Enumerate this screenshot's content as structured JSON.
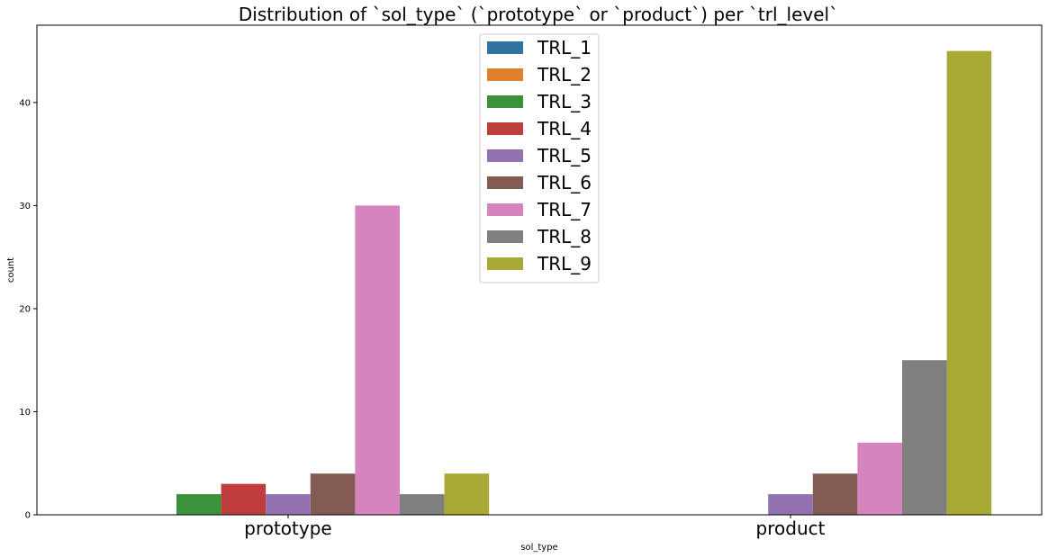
{
  "chart_data": {
    "type": "bar",
    "title": "Distribution of `sol_type` (`prototype` or `product`) per `trl_level`",
    "xlabel": "sol_type",
    "ylabel": "count",
    "categories": [
      "prototype",
      "product"
    ],
    "ylim": [
      0,
      47.5
    ],
    "yticks": [
      0,
      10,
      20,
      30,
      40
    ],
    "grid": false,
    "legend_position": "top-center",
    "series": [
      {
        "name": "TRL_1",
        "color": "#3274a1",
        "values": [
          0,
          0
        ]
      },
      {
        "name": "TRL_2",
        "color": "#e1812c",
        "values": [
          0,
          0
        ]
      },
      {
        "name": "TRL_3",
        "color": "#3a923a",
        "values": [
          2,
          0
        ]
      },
      {
        "name": "TRL_4",
        "color": "#c03d3e",
        "values": [
          3,
          0
        ]
      },
      {
        "name": "TRL_5",
        "color": "#9372b2",
        "values": [
          2,
          2
        ]
      },
      {
        "name": "TRL_6",
        "color": "#845b53",
        "values": [
          4,
          4
        ]
      },
      {
        "name": "TRL_7",
        "color": "#d684bd",
        "values": [
          30,
          7
        ]
      },
      {
        "name": "TRL_8",
        "color": "#7f7f7f",
        "values": [
          2,
          15
        ]
      },
      {
        "name": "TRL_9",
        "color": "#a9aa35",
        "values": [
          4,
          45
        ]
      }
    ]
  }
}
